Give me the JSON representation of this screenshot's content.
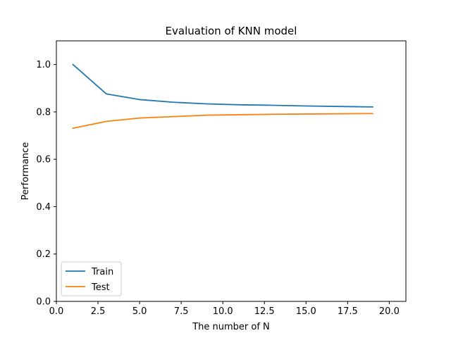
{
  "chart_data": {
    "type": "line",
    "title": "Evaluation of KNN model",
    "xlabel": "The number of N",
    "ylabel": "Performance",
    "xlim": [
      0,
      21
    ],
    "ylim": [
      0,
      1.1
    ],
    "x_ticks": [
      {
        "value": 0,
        "label": "0.0"
      },
      {
        "value": 2.5,
        "label": "2.5"
      },
      {
        "value": 5,
        "label": "5.0"
      },
      {
        "value": 7.5,
        "label": "7.5"
      },
      {
        "value": 10,
        "label": "10.0"
      },
      {
        "value": 12.5,
        "label": "12.5"
      },
      {
        "value": 15,
        "label": "15.0"
      },
      {
        "value": 17.5,
        "label": "17.5"
      },
      {
        "value": 20,
        "label": "20.0"
      }
    ],
    "y_ticks": [
      {
        "value": 0,
        "label": "0.0"
      },
      {
        "value": 0.2,
        "label": "0.2"
      },
      {
        "value": 0.4,
        "label": "0.4"
      },
      {
        "value": 0.6,
        "label": "0.6"
      },
      {
        "value": 0.8,
        "label": "0.8"
      },
      {
        "value": 1.0,
        "label": "1.0"
      }
    ],
    "grid": false,
    "legend_position": "lower-left",
    "x": [
      1,
      3,
      5,
      7,
      9,
      11,
      13,
      15,
      17,
      19
    ],
    "series": [
      {
        "name": "Train",
        "color": "#1f77b4",
        "values": [
          1.0,
          0.876,
          0.852,
          0.841,
          0.834,
          0.83,
          0.828,
          0.825,
          0.823,
          0.821
        ]
      },
      {
        "name": "Test",
        "color": "#ff7f0e",
        "values": [
          0.731,
          0.76,
          0.774,
          0.78,
          0.786,
          0.788,
          0.79,
          0.791,
          0.792,
          0.793
        ]
      }
    ]
  }
}
